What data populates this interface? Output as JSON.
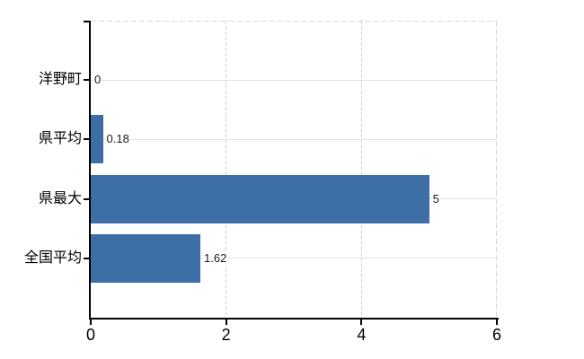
{
  "chart_data": {
    "type": "bar",
    "orientation": "horizontal",
    "categories": [
      "洋野町",
      "県平均",
      "県最大",
      "全国平均"
    ],
    "values": [
      0,
      0.18,
      5,
      1.62
    ],
    "value_labels": [
      "0",
      "0.18",
      "5",
      "1.62"
    ],
    "xlim": [
      0,
      6
    ],
    "x_tick_values": [
      0,
      2,
      4,
      6
    ],
    "x_tick_labels": [
      "0",
      "2",
      "4",
      "6"
    ],
    "grid": "on",
    "legend": "none"
  },
  "colors": {
    "bar": "#3d6fa6",
    "axis": "#000000",
    "grid_h": "#dce3dc",
    "grid_v_dash": "#cbd4cb",
    "border_dash": "#d6d6d6",
    "text": "#000000",
    "background": "#ffffff"
  }
}
